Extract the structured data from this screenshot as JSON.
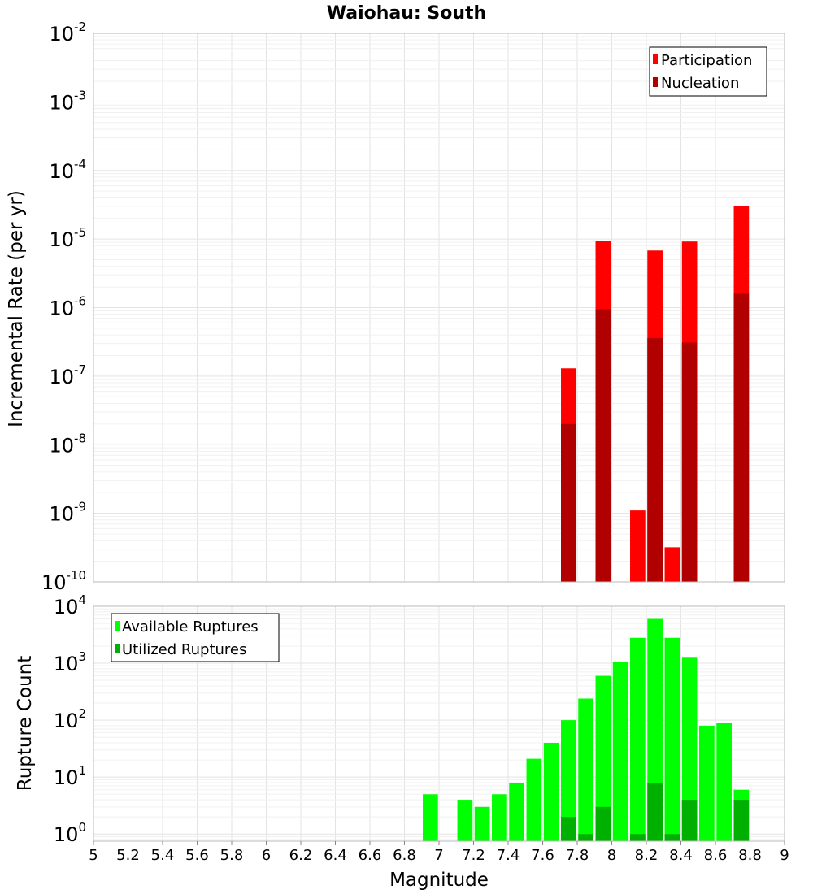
{
  "chart_data": [
    {
      "type": "bar",
      "title": "Waiohau: South",
      "ylabel": "Incremental Rate (per yr)",
      "xlim": [
        5,
        9
      ],
      "ylim": [
        1e-10,
        0.01
      ],
      "y_scale": "log",
      "legend_position": "top-right",
      "x": [
        7.75,
        7.95,
        8.15,
        8.25,
        8.35,
        8.45,
        8.75
      ],
      "series": [
        {
          "name": "Participation",
          "color": "#ff0000",
          "values": [
            1.3e-07,
            9.5e-06,
            1.1e-09,
            6.8e-06,
            3.2e-10,
            9.2e-06,
            3e-05
          ]
        },
        {
          "name": "Nucleation",
          "color": "#b00000",
          "values": [
            2e-08,
            9.5e-07,
            null,
            3.6e-07,
            null,
            3.1e-07,
            1.6e-06
          ]
        }
      ]
    },
    {
      "type": "bar",
      "xlabel": "Magnitude",
      "ylabel": "Rupture Count",
      "xlim": [
        5,
        9
      ],
      "ylim": [
        0.75,
        10000
      ],
      "y_scale": "log",
      "legend_position": "top-left",
      "x": [
        6.95,
        7.15,
        7.25,
        7.35,
        7.45,
        7.55,
        7.65,
        7.75,
        7.85,
        7.95,
        8.05,
        8.15,
        8.25,
        8.35,
        8.45,
        8.55,
        8.65,
        8.75
      ],
      "series": [
        {
          "name": "Available Ruptures",
          "color": "#00ff00",
          "values": [
            5,
            4,
            3,
            5,
            8,
            21,
            40,
            100,
            240,
            600,
            1050,
            2800,
            6000,
            2800,
            1250,
            80,
            90,
            6
          ]
        },
        {
          "name": "Utilized Ruptures",
          "color": "#00b000",
          "values": [
            null,
            null,
            null,
            null,
            null,
            null,
            null,
            2,
            1,
            3,
            null,
            1,
            8,
            1,
            4,
            null,
            null,
            4
          ]
        }
      ]
    }
  ],
  "x_ticks": [
    "5",
    "5.2",
    "5.4",
    "5.6",
    "5.8",
    "6",
    "6.2",
    "6.4",
    "6.6",
    "6.8",
    "7",
    "7.2",
    "7.4",
    "7.6",
    "7.8",
    "8",
    "8.2",
    "8.4",
    "8.6",
    "8.8",
    "9"
  ]
}
